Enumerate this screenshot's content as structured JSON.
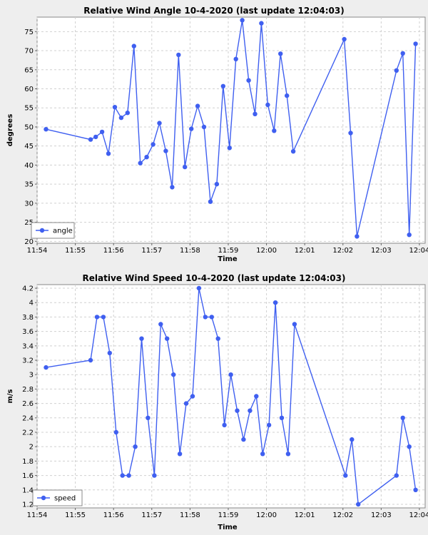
{
  "charts": [
    {
      "title": "Relative Wind Angle 10-4-2020 (last update 12:04:03)",
      "xlabel": "Time",
      "ylabel": "degrees",
      "legend": "angle"
    },
    {
      "title": "Relative Wind Speed 10-4-2020 (last update 12:04:03)",
      "xlabel": "Time",
      "ylabel": "m/s",
      "legend": "speed"
    }
  ],
  "chart_data": [
    {
      "type": "line",
      "title": "Relative Wind Angle 10-4-2020 (last update 12:04:03)",
      "xlabel": "Time",
      "ylabel": "degrees",
      "x_tick_labels": [
        "11:54",
        "11:55",
        "11:56",
        "11:57",
        "11:58",
        "11:59",
        "12:00",
        "12:01",
        "12:02",
        "12:03",
        "12:04"
      ],
      "y_ticks": [
        20,
        25,
        30,
        35,
        40,
        45,
        50,
        55,
        60,
        65,
        70,
        75
      ],
      "ylim": [
        19.5,
        78.8
      ],
      "xlim": [
        "11:54:00",
        "12:04:09"
      ],
      "legend_position": "bottom-left",
      "grid": true,
      "color": "#3f5ff0",
      "series": [
        {
          "name": "angle",
          "x": [
            "11:54:14",
            "11:55:24",
            "11:55:32",
            "11:55:42",
            "11:55:52",
            "11:56:02",
            "11:56:12",
            "11:56:22",
            "11:56:32",
            "11:56:42",
            "11:56:52",
            "11:57:02",
            "11:57:12",
            "11:57:22",
            "11:57:32",
            "11:57:42",
            "11:57:52",
            "11:58:02",
            "11:58:12",
            "11:58:22",
            "11:58:32",
            "11:58:42",
            "11:58:52",
            "11:59:02",
            "11:59:12",
            "11:59:22",
            "11:59:32",
            "11:59:42",
            "11:59:52",
            "12:00:02",
            "12:00:12",
            "12:00:22",
            "12:00:32",
            "12:00:42",
            "12:02:02",
            "12:02:12",
            "12:02:22",
            "12:03:24",
            "12:03:34",
            "12:03:44",
            "12:03:54"
          ],
          "values": [
            49.4,
            46.7,
            47.4,
            48.7,
            43.0,
            55.2,
            52.4,
            53.7,
            71.2,
            40.5,
            42.1,
            45.4,
            51.0,
            43.7,
            34.2,
            68.9,
            39.5,
            49.5,
            55.5,
            50.0,
            30.4,
            35.0,
            60.7,
            44.5,
            67.8,
            78.0,
            62.2,
            53.4,
            77.2,
            55.8,
            49.0,
            69.2,
            58.2,
            43.6,
            73.0,
            48.4,
            21.3,
            64.8,
            69.3,
            21.7,
            71.8
          ]
        }
      ]
    },
    {
      "type": "line",
      "title": "Relative Wind Speed 10-4-2020 (last update 12:04:03)",
      "xlabel": "Time",
      "ylabel": "m/s",
      "x_tick_labels": [
        "11:54",
        "11:55",
        "11:56",
        "11:57",
        "11:58",
        "11:59",
        "12:00",
        "12:01",
        "12:02",
        "12:03",
        "12:04"
      ],
      "y_ticks": [
        1.2,
        1.4,
        1.6,
        1.8,
        2,
        2.2,
        2.4,
        2.6,
        2.8,
        3,
        3.2,
        3.4,
        3.6,
        3.8,
        4,
        4.2
      ],
      "ylim": [
        1.15,
        4.25
      ],
      "xlim": [
        "11:54:00",
        "12:04:09"
      ],
      "legend_position": "bottom-left",
      "grid": true,
      "color": "#3f5ff0",
      "series": [
        {
          "name": "speed",
          "x": [
            "11:54:14",
            "11:55:24",
            "11:55:34",
            "11:55:44",
            "11:55:54",
            "11:56:04",
            "11:56:14",
            "11:56:24",
            "11:56:34",
            "11:56:44",
            "11:56:54",
            "11:57:04",
            "11:57:14",
            "11:57:24",
            "11:57:34",
            "11:57:44",
            "11:57:54",
            "11:58:04",
            "11:58:14",
            "11:58:24",
            "11:58:34",
            "11:58:44",
            "11:58:54",
            "11:59:04",
            "11:59:14",
            "11:59:24",
            "11:59:34",
            "11:59:44",
            "11:59:54",
            "12:00:04",
            "12:00:14",
            "12:00:24",
            "12:00:34",
            "12:00:44",
            "12:02:04",
            "12:02:14",
            "12:02:24",
            "12:03:24",
            "12:03:34",
            "12:03:44",
            "12:03:54"
          ],
          "values": [
            3.1,
            3.2,
            3.8,
            3.8,
            3.3,
            2.2,
            1.6,
            1.6,
            2.0,
            3.5,
            2.4,
            1.6,
            3.7,
            3.5,
            3.0,
            1.9,
            2.6,
            2.7,
            4.2,
            3.8,
            3.8,
            3.5,
            2.3,
            3.0,
            2.5,
            2.1,
            2.5,
            2.7,
            1.9,
            2.3,
            4.0,
            2.4,
            1.9,
            3.7,
            1.6,
            2.1,
            1.2,
            1.6,
            2.4,
            2.0,
            1.4
          ]
        }
      ]
    }
  ]
}
